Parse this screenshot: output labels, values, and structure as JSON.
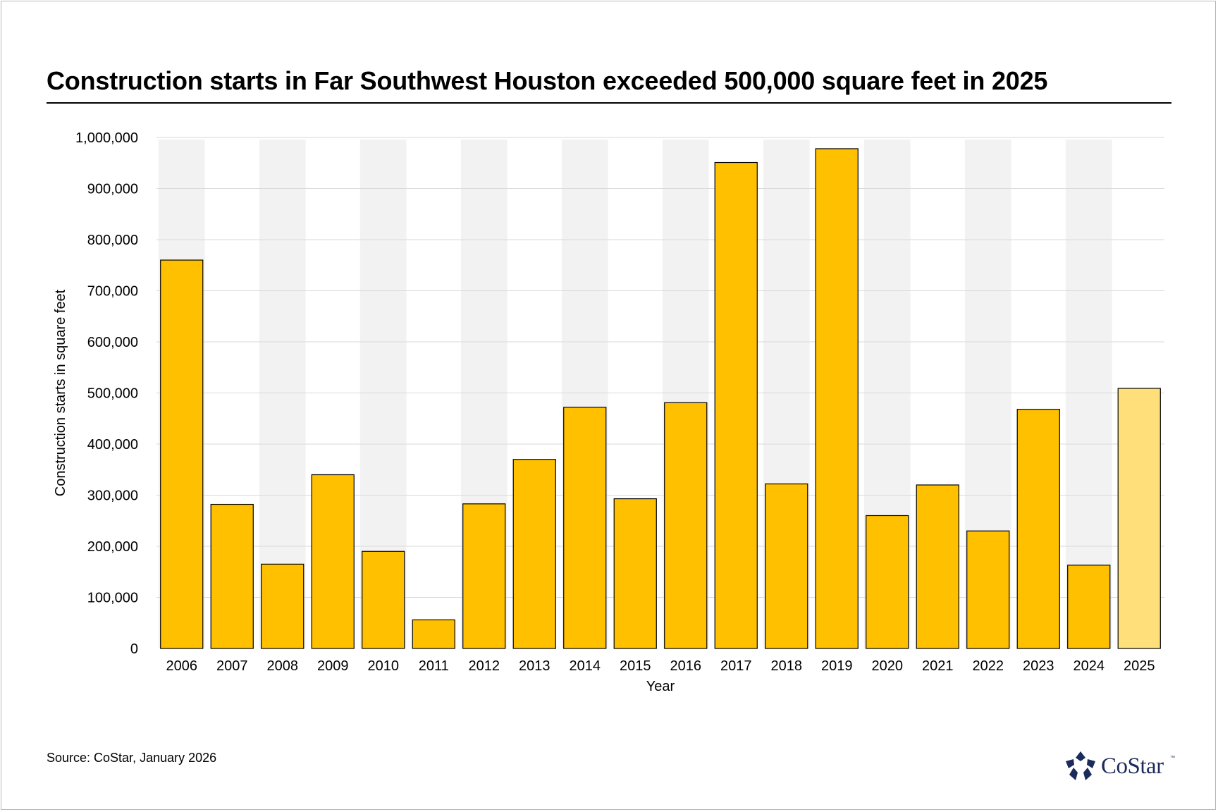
{
  "title": "Construction starts in Far Southwest Houston exceeded 500,000 square feet in 2025",
  "source": "Source: CoStar, January 2026",
  "logo": {
    "text": "CoStar",
    "tm": "™",
    "color": "#1b2b5c"
  },
  "colors": {
    "bar": "#ffc000",
    "bar_highlight": "#ffdf7a",
    "band": "#f2f2f2",
    "grid": "#d9d9d9"
  },
  "chart_data": {
    "type": "bar",
    "categories": [
      "2006",
      "2007",
      "2008",
      "2009",
      "2010",
      "2011",
      "2012",
      "2013",
      "2014",
      "2015",
      "2016",
      "2017",
      "2018",
      "2019",
      "2020",
      "2021",
      "2022",
      "2023",
      "2024",
      "2025"
    ],
    "values": [
      760000,
      282000,
      165000,
      340000,
      190000,
      56000,
      283000,
      370000,
      472000,
      293000,
      481000,
      951000,
      322000,
      978000,
      260000,
      320000,
      230000,
      468000,
      163000,
      509000
    ],
    "highlight_category": "2025",
    "xlabel": "Year",
    "ylabel": "Construction starts in square feet",
    "ylim": [
      0,
      1000000
    ],
    "yticks": [
      0,
      100000,
      200000,
      300000,
      400000,
      500000,
      600000,
      700000,
      800000,
      900000,
      1000000
    ],
    "ytick_labels": [
      "0",
      "100,000",
      "200,000",
      "300,000",
      "400,000",
      "500,000",
      "600,000",
      "700,000",
      "800,000",
      "900,000",
      "1,000,000"
    ],
    "grid": true,
    "legend": "none"
  }
}
